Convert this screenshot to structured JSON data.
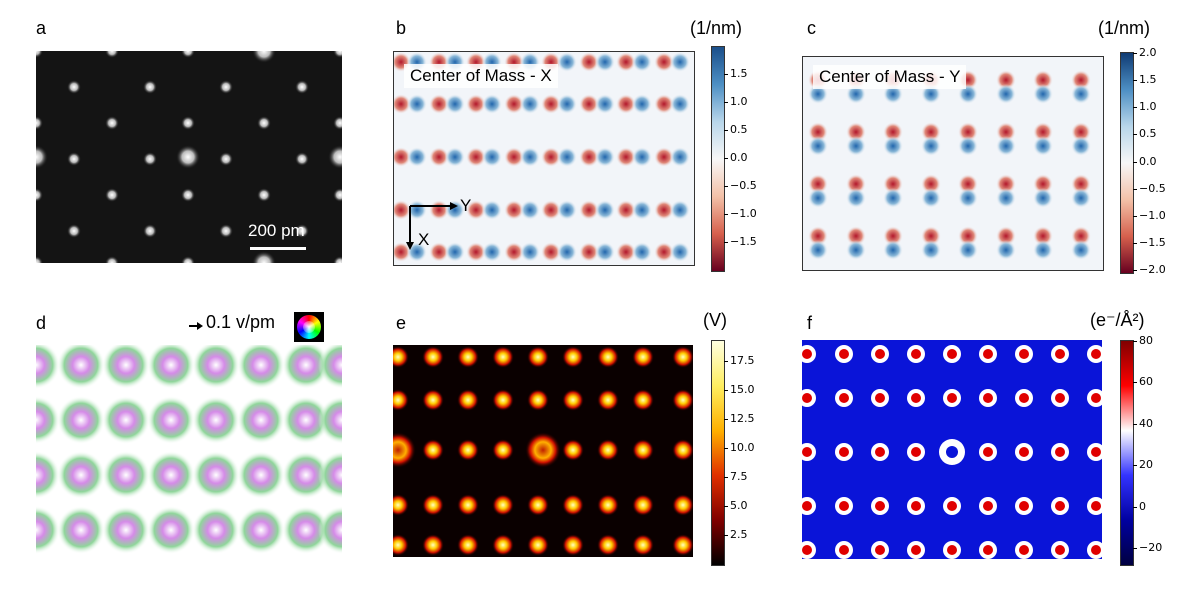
{
  "panels": {
    "a": {
      "label": "a",
      "scalebar": "200 pm"
    },
    "b": {
      "label": "b",
      "title": "Center of Mass - X",
      "unit": "(1/nm)",
      "axis_y": "Y",
      "axis_x": "X",
      "ticks": [
        "1.5",
        "1.0",
        "0.5",
        "0.0",
        "−0.5",
        "−1.0",
        "−1.5"
      ]
    },
    "c": {
      "label": "c",
      "title": "Center of Mass - Y",
      "unit": "(1/nm)",
      "ticks": [
        "2.0",
        "1.5",
        "1.0",
        "0.5",
        "0.0",
        "−0.5",
        "−1.0",
        "−1.5",
        "−2.0"
      ]
    },
    "d": {
      "label": "d",
      "legend": "0.1 v/pm"
    },
    "e": {
      "label": "e",
      "unit": "(V)",
      "ticks": [
        "17.5",
        "15.0",
        "12.5",
        "10.0",
        "7.5",
        "5.0",
        "2.5"
      ]
    },
    "f": {
      "label": "f",
      "unit": "(e⁻/Å²)",
      "ticks": [
        "80",
        "60",
        "40",
        "20",
        "0",
        "−20"
      ]
    }
  }
}
